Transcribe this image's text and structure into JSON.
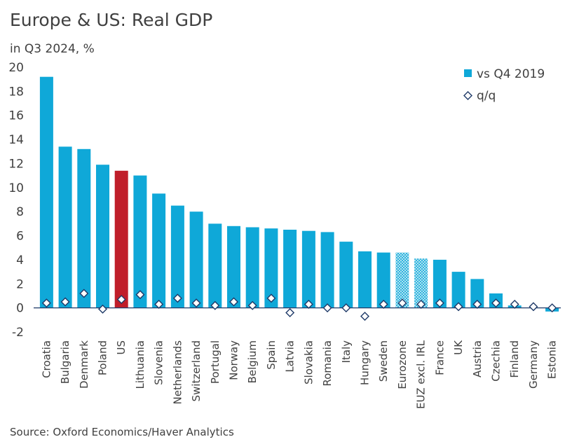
{
  "title": "Europe & US: Real GDP",
  "subtitle": "in Q3 2024, %",
  "source": "Source: Oxford Economics/Haver Analytics",
  "colors": {
    "bar": "#0FA8D8",
    "highlight": "#C01E2A",
    "diamond_fill": "#ffffff",
    "diamond_stroke": "#1F3A68",
    "zero_line": "#1F3A68"
  },
  "chart_data": {
    "type": "bar",
    "title": "Europe & US: Real GDP",
    "subtitle": "in Q3 2024, %",
    "ylim": [
      -2,
      20
    ],
    "yticks": [
      -2,
      0,
      2,
      4,
      6,
      8,
      10,
      12,
      14,
      16,
      18,
      20
    ],
    "legend_position": "top-right",
    "categories": [
      "Croatia",
      "Bulgaria",
      "Denmark",
      "Poland",
      "US",
      "Lithuania",
      "Slovenia",
      "Netherlands",
      "Switzerland",
      "Portugal",
      "Norway",
      "Belgium",
      "Spain",
      "Latvia",
      "Slovakia",
      "Romania",
      "Italy",
      "Hungary",
      "Sweden",
      "Eurozone",
      "EUZ excl. IRL",
      "France",
      "UK",
      "Austria",
      "Czechia",
      "Finland",
      "Germany",
      "Estonia"
    ],
    "series": [
      {
        "name": "vs Q4 2019",
        "type": "bar",
        "values": [
          19.2,
          13.4,
          13.2,
          11.9,
          11.4,
          11.0,
          9.5,
          8.5,
          8.0,
          7.0,
          6.8,
          6.7,
          6.6,
          6.5,
          6.4,
          6.3,
          5.5,
          4.7,
          4.6,
          4.6,
          4.1,
          4.0,
          3.0,
          2.4,
          1.2,
          0.2,
          0.0,
          -0.3
        ],
        "highlight": [
          "US"
        ],
        "hatched": [
          "Eurozone",
          "EUZ excl. IRL"
        ]
      },
      {
        "name": "q/q",
        "type": "scatter",
        "marker": "diamond",
        "values": [
          0.4,
          0.5,
          1.2,
          -0.1,
          0.7,
          1.1,
          0.3,
          0.8,
          0.4,
          0.2,
          0.5,
          0.2,
          0.8,
          -0.4,
          0.3,
          0.0,
          0.0,
          -0.7,
          0.3,
          0.4,
          0.3,
          0.4,
          0.1,
          0.3,
          0.4,
          0.3,
          0.1,
          0.0
        ]
      }
    ]
  }
}
